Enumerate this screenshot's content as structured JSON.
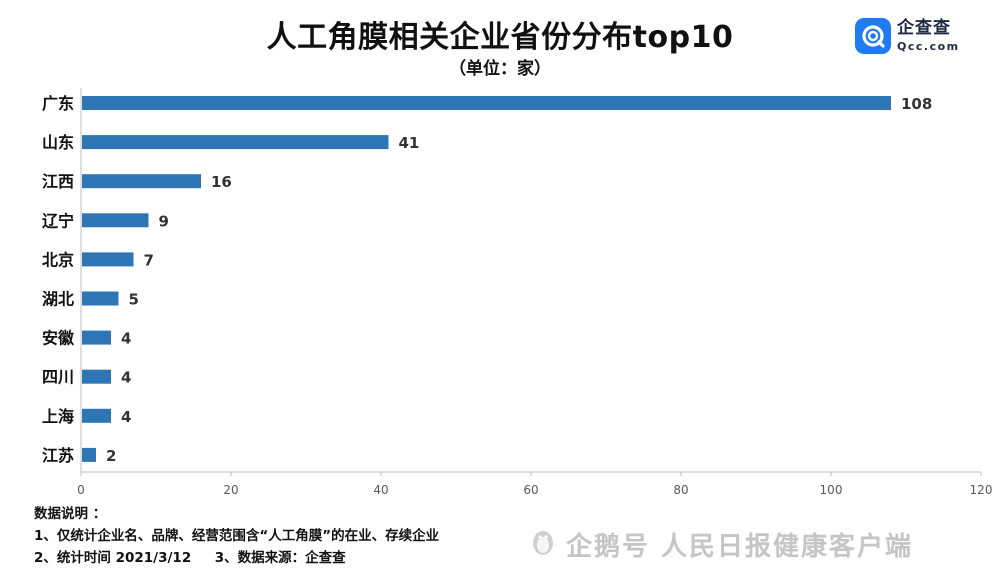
{
  "title": "人工角膜相关企业省份分布top10",
  "subtitle": "（单位：家）",
  "logo": {
    "name": "企查查",
    "url": "Qcc.com"
  },
  "colors": {
    "bar": "#2e75b6",
    "axis": "#bfbfbf",
    "logo": "#1f7bf2"
  },
  "chart_data": {
    "type": "bar",
    "orientation": "horizontal",
    "categories": [
      "广东",
      "山东",
      "江西",
      "辽宁",
      "北京",
      "湖北",
      "安徽",
      "四川",
      "上海",
      "江苏"
    ],
    "values": [
      108,
      41,
      16,
      9,
      7,
      5,
      4,
      4,
      4,
      2
    ],
    "xlim": [
      0,
      120
    ],
    "xticks": [
      0,
      20,
      40,
      60,
      80,
      100,
      120
    ],
    "title": "人工角膜相关企业省份分布top10",
    "xlabel": "",
    "ylabel": "",
    "grid": false
  },
  "notes": {
    "header": "数据说明 ：",
    "line1": "1、仅统计企业名、品牌、经营范围含“人工角膜”的在业、存续企业",
    "line2": "2、统计时间 2021/3/12     3、数据来源：企查查"
  },
  "watermark": "企鹅号 人民日报健康客户端"
}
